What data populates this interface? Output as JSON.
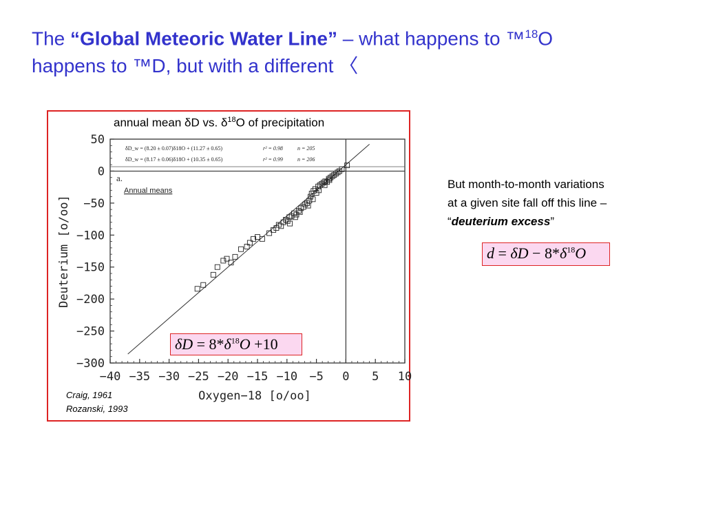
{
  "slide": {
    "title_pre": "The ",
    "title_quote_open": "“",
    "title_bold": "Global Meteoric Water Line",
    "title_quote_close": "”",
    "title_mid": " – what happens to ",
    "title_sym1": "™",
    "title_sup": "18",
    "title_after_sup": "O",
    "title_line2_a": "happens to ",
    "title_sym2": "™",
    "title_line2_b": "D, but with a different 〈",
    "note_line1": "But month-to-month variations",
    "note_line2": "at a given site fall off this line –",
    "note_quote_open": "“",
    "note_emph": "deuterium excess",
    "note_quote_close": "”",
    "citation1": "Craig, 1961",
    "citation2": "Rozanski, 1993"
  },
  "figure": {
    "title_a": "annual mean ",
    "title_delta1": "δ",
    "title_b": "D vs. ",
    "title_delta2": "δ",
    "title_sup": "18",
    "title_c": "O of precipitation"
  },
  "equations": {
    "gmwl": {
      "delta1": "δ",
      "D": "D",
      "eq": " = 8*",
      "delta2": "δ",
      "sup": "18",
      "O": "O",
      "plus": " +10"
    },
    "excess": {
      "d": "d",
      "eq": " = ",
      "delta1": "δ",
      "D": "D",
      "mid": " − 8*",
      "delta2": "δ",
      "sup": "18",
      "O": "O"
    }
  },
  "chart_data": {
    "type": "scatter",
    "title": "annual mean δD vs. δ18O of precipitation",
    "xlabel": "Oxygen−18 [o/oo]",
    "ylabel": "Deuterium [o/oo]",
    "xlim": [
      -40,
      10
    ],
    "ylim": [
      -300,
      50
    ],
    "xticks": [
      -40,
      -35,
      -30,
      -25,
      -20,
      -15,
      -10,
      -5,
      0,
      5,
      10
    ],
    "yticks": [
      50,
      0,
      -50,
      -100,
      -150,
      -200,
      -250,
      -300
    ],
    "xtick_labels": [
      "−40",
      "−35",
      "−30",
      "−25",
      "−20",
      "−15",
      "−10",
      "−5",
      "0",
      "5",
      "10"
    ],
    "ytick_labels": [
      "50",
      "0",
      "−50",
      "−100",
      "−150",
      "−200",
      "−250",
      "−300"
    ],
    "panel_label": "a.",
    "panel_sublabel": "Annual means",
    "fit_rows": [
      {
        "eq": "δD_w = (8.20 ± 0.07)δ18O + (11.27 ± 0.65)",
        "r2": "r² = 0.98",
        "n": "n = 205"
      },
      {
        "eq": "δD_w = (8.17 ± 0.06)δ18O + (10.35 ± 0.65)",
        "r2": "r² = 0.99",
        "n": "n = 206"
      }
    ],
    "line": {
      "slope": 8,
      "intercept": 10,
      "x_range": [
        -37,
        4
      ]
    },
    "reference_lines": {
      "x": 0,
      "y": 0
    },
    "points": [
      [
        -25.2,
        -184
      ],
      [
        -24.2,
        -178
      ],
      [
        -22.5,
        -162
      ],
      [
        -21.8,
        -150
      ],
      [
        -20.8,
        -140
      ],
      [
        -20.2,
        -137
      ],
      [
        -19.5,
        -143
      ],
      [
        -18.8,
        -134
      ],
      [
        -17.8,
        -122
      ],
      [
        -16.8,
        -118
      ],
      [
        -16.3,
        -112
      ],
      [
        -15.7,
        -106
      ],
      [
        -15.0,
        -103
      ],
      [
        -14.2,
        -106
      ],
      [
        -13.0,
        -97
      ],
      [
        -12.3,
        -92
      ],
      [
        -11.8,
        -89
      ],
      [
        -11.4,
        -84
      ],
      [
        -11.0,
        -86
      ],
      [
        -10.6,
        -80
      ],
      [
        -10.2,
        -76
      ],
      [
        -9.9,
        -78
      ],
      [
        -9.6,
        -72
      ],
      [
        -9.2,
        -70
      ],
      [
        -8.8,
        -66
      ],
      [
        -8.4,
        -68
      ],
      [
        -8.0,
        -62
      ],
      [
        -7.6,
        -58
      ],
      [
        -7.2,
        -56
      ],
      [
        -6.9,
        -52
      ],
      [
        -6.6,
        -50
      ],
      [
        -6.2,
        -46
      ],
      [
        -6.0,
        -40
      ],
      [
        -5.8,
        -35
      ],
      [
        -5.5,
        -31
      ],
      [
        -5.2,
        -28
      ],
      [
        -5.0,
        -34
      ],
      [
        -4.7,
        -24
      ],
      [
        -4.4,
        -22
      ],
      [
        -4.1,
        -20
      ],
      [
        -3.8,
        -18
      ],
      [
        -3.5,
        -16
      ],
      [
        -3.2,
        -17
      ],
      [
        -2.9,
        -12
      ],
      [
        -2.6,
        -10
      ],
      [
        -2.3,
        -8
      ],
      [
        -2.0,
        -6
      ],
      [
        -1.7,
        -4
      ],
      [
        -1.4,
        -2
      ],
      [
        -1.1,
        0
      ],
      [
        -0.7,
        3
      ],
      [
        0.2,
        9
      ],
      [
        -9.5,
        -82
      ],
      [
        -8.6,
        -72
      ],
      [
        -7.8,
        -64
      ],
      [
        -6.4,
        -54
      ],
      [
        -5.6,
        -44
      ],
      [
        -4.6,
        -30
      ],
      [
        -3.6,
        -22
      ],
      [
        -2.8,
        -14
      ]
    ]
  }
}
